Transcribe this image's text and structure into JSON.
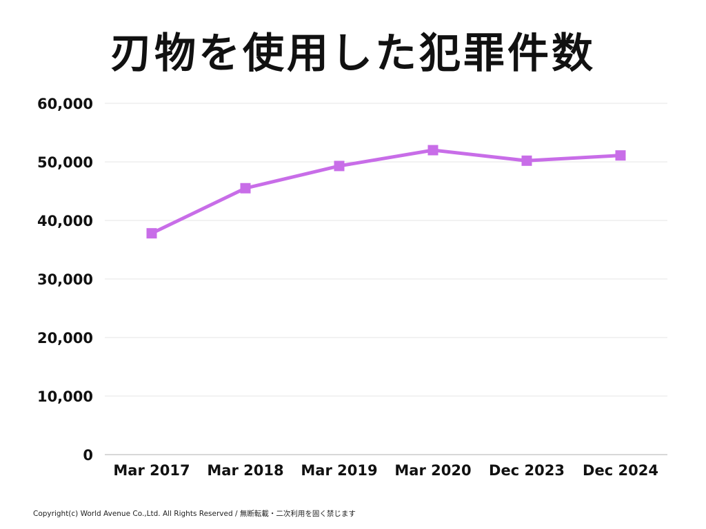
{
  "title": "刃物を使用した犯罪件数",
  "copyright": "Copyright(c) World Avenue Co.,Ltd. All Rights Reserved / 無断転載・二次利用を固く禁じます",
  "colors": {
    "line": "#C86DE8",
    "grid": "#E6E6E6",
    "axis": "#CCCCCC",
    "text": "#111111"
  },
  "chart_data": {
    "type": "line",
    "title": "刃物を使用した犯罪件数",
    "categories": [
      "Mar 2017",
      "Mar 2018",
      "Mar 2019",
      "Mar 2020",
      "Dec 2023",
      "Dec 2024"
    ],
    "series": [
      {
        "name": "",
        "values": [
          37800,
          45500,
          49300,
          52000,
          50200,
          51100
        ]
      }
    ],
    "ylim": [
      0,
      60000
    ],
    "yticks": [
      0,
      10000,
      20000,
      30000,
      40000,
      50000,
      60000
    ],
    "ytick_labels": [
      "0",
      "10,000",
      "20,000",
      "30,000",
      "40,000",
      "50,000",
      "60,000"
    ],
    "xlabel": "",
    "ylabel": "",
    "grid": true,
    "legend": "none"
  }
}
